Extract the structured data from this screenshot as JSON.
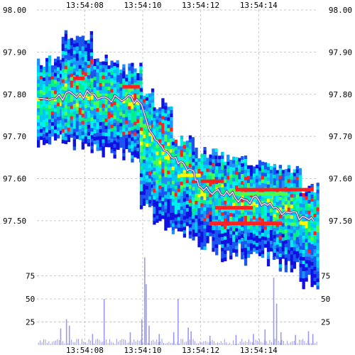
{
  "chart_data": {
    "type": "heatmap",
    "title": "",
    "xlabel": "",
    "ylabel": "",
    "x_tick_labels": [
      "13:54:08",
      "13:54:10",
      "13:54:12",
      "13:54:14"
    ],
    "x_tick_seconds": [
      8,
      10,
      12,
      14
    ],
    "x_range_seconds": [
      6.35,
      16.05
    ],
    "price_axis": {
      "tick_labels": [
        "98.00",
        "97.90",
        "97.80",
        "97.70",
        "97.60",
        "97.50"
      ],
      "tick_values": [
        98.0,
        97.9,
        97.8,
        97.7,
        97.6,
        97.5
      ],
      "range": [
        97.35,
        98.0
      ]
    },
    "volume_axis": {
      "tick_labels": [
        "75",
        "50",
        "25"
      ],
      "tick_values": [
        75,
        50,
        25
      ],
      "range": [
        0,
        100
      ]
    },
    "grid": true,
    "palette": [
      "#1010e0",
      "#1a55f0",
      "#1e90ff",
      "#00c8f0",
      "#00f0f0",
      "#00f08c",
      "#4cff4c",
      "#ffff00",
      "#ff2020"
    ],
    "colors": {
      "background": "#ffffff",
      "grid": "#c8c8c8",
      "volume_bars": "#9a9af0",
      "price_trace": "#ffffff",
      "price_trace_shadow": "#6030a0"
    },
    "price_trace": [
      {
        "t": 6.4,
        "p": 97.79
      },
      {
        "t": 7.0,
        "p": 97.79
      },
      {
        "t": 7.6,
        "p": 97.8
      },
      {
        "t": 8.2,
        "p": 97.8
      },
      {
        "t": 8.8,
        "p": 97.79
      },
      {
        "t": 9.4,
        "p": 97.79
      },
      {
        "t": 9.9,
        "p": 97.78
      },
      {
        "t": 10.2,
        "p": 97.72
      },
      {
        "t": 10.5,
        "p": 97.69
      },
      {
        "t": 10.9,
        "p": 97.66
      },
      {
        "t": 11.3,
        "p": 97.64
      },
      {
        "t": 11.7,
        "p": 97.62
      },
      {
        "t": 12.0,
        "p": 97.58
      },
      {
        "t": 12.5,
        "p": 97.57
      },
      {
        "t": 13.0,
        "p": 97.56
      },
      {
        "t": 13.5,
        "p": 97.55
      },
      {
        "t": 14.0,
        "p": 97.55
      },
      {
        "t": 14.5,
        "p": 97.53
      },
      {
        "t": 15.0,
        "p": 97.52
      },
      {
        "t": 15.5,
        "p": 97.51
      },
      {
        "t": 15.9,
        "p": 97.5
      }
    ],
    "depth_segments": [
      {
        "t0": 6.35,
        "t1": 7.2,
        "p_top": 97.88,
        "p_bottom": 97.69,
        "mid": 97.79
      },
      {
        "t0": 7.2,
        "t1": 8.2,
        "p_top": 97.94,
        "p_bottom": 97.69,
        "mid": 97.8
      },
      {
        "t0": 8.2,
        "t1": 9.1,
        "p_top": 97.88,
        "p_bottom": 97.67,
        "mid": 97.79
      },
      {
        "t0": 9.1,
        "t1": 9.9,
        "p_top": 97.86,
        "p_bottom": 97.66,
        "mid": 97.78
      },
      {
        "t0": 9.9,
        "t1": 10.35,
        "p_top": 97.8,
        "p_bottom": 97.53,
        "mid": 97.7
      },
      {
        "t0": 10.35,
        "t1": 11.0,
        "p_top": 97.78,
        "p_bottom": 97.5,
        "mid": 97.66
      },
      {
        "t0": 11.0,
        "t1": 11.7,
        "p_top": 97.69,
        "p_bottom": 97.48,
        "mid": 97.62
      },
      {
        "t0": 11.7,
        "t1": 12.5,
        "p_top": 97.66,
        "p_bottom": 97.45,
        "mid": 97.58
      },
      {
        "t0": 12.5,
        "t1": 13.5,
        "p_top": 97.65,
        "p_bottom": 97.43,
        "mid": 97.56
      },
      {
        "t0": 13.5,
        "t1": 14.5,
        "p_top": 97.64,
        "p_bottom": 97.42,
        "mid": 97.55
      },
      {
        "t0": 14.5,
        "t1": 15.4,
        "p_top": 97.62,
        "p_bottom": 97.4,
        "mid": 97.53
      },
      {
        "t0": 15.4,
        "t1": 16.05,
        "p_top": 97.58,
        "p_bottom": 97.36,
        "mid": 97.5
      }
    ],
    "volume_spikes": [
      {
        "t": 7.15,
        "v": 18
      },
      {
        "t": 7.35,
        "v": 28
      },
      {
        "t": 7.45,
        "v": 21
      },
      {
        "t": 8.25,
        "v": 12
      },
      {
        "t": 8.65,
        "v": 50
      },
      {
        "t": 9.55,
        "v": 14
      },
      {
        "t": 9.95,
        "v": 28
      },
      {
        "t": 10.05,
        "v": 95
      },
      {
        "t": 10.1,
        "v": 66
      },
      {
        "t": 10.2,
        "v": 21
      },
      {
        "t": 10.55,
        "v": 12
      },
      {
        "t": 11.05,
        "v": 14
      },
      {
        "t": 11.2,
        "v": 50
      },
      {
        "t": 11.55,
        "v": 19
      },
      {
        "t": 11.65,
        "v": 15
      },
      {
        "t": 12.3,
        "v": 10
      },
      {
        "t": 13.2,
        "v": 11
      },
      {
        "t": 13.8,
        "v": 12
      },
      {
        "t": 14.2,
        "v": 17
      },
      {
        "t": 14.5,
        "v": 73
      },
      {
        "t": 14.6,
        "v": 45
      },
      {
        "t": 14.75,
        "v": 14
      },
      {
        "t": 15.25,
        "v": 11
      },
      {
        "t": 15.7,
        "v": 15
      },
      {
        "t": 15.85,
        "v": 12
      }
    ]
  }
}
